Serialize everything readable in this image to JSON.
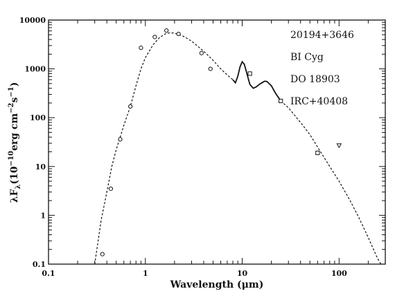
{
  "chart_data": {
    "type": "scatter",
    "title": "",
    "xlabel": "Wavelength (μm)",
    "ylabel": "λF_λ (10^-10 erg cm^-2 s^-1)",
    "x_scale": "log",
    "y_scale": "log",
    "xlim": [
      0.1,
      300
    ],
    "ylim": [
      0.1,
      10000
    ],
    "x_ticks": [
      0.1,
      1,
      10,
      100
    ],
    "x_tick_labels": [
      "0.1",
      "1",
      "10",
      "100"
    ],
    "y_ticks": [
      0.1,
      1,
      10,
      100,
      1000,
      10000
    ],
    "y_tick_labels": [
      "0.1",
      "1",
      "10",
      "100",
      "1000",
      "10000"
    ],
    "annotations": [
      "20194+3646",
      "BI Cyg",
      "DO 18903",
      "IRC+40408"
    ],
    "series": [
      {
        "marker": "circle",
        "points": [
          [
            0.36,
            0.16
          ],
          [
            0.44,
            3.5
          ],
          [
            0.55,
            36
          ],
          [
            0.7,
            170
          ],
          [
            0.9,
            2700
          ],
          [
            1.25,
            4500
          ],
          [
            1.65,
            6100
          ],
          [
            2.2,
            5200
          ],
          [
            3.8,
            2100
          ],
          [
            4.7,
            1000
          ]
        ]
      },
      {
        "marker": "square",
        "points": [
          [
            12,
            800
          ],
          [
            25,
            220
          ],
          [
            60,
            19
          ]
        ]
      },
      {
        "marker": "triangle-down",
        "points": [
          [
            100,
            27
          ]
        ]
      },
      {
        "style": "dashed",
        "points": [
          [
            0.3,
            0.1
          ],
          [
            0.35,
            0.8
          ],
          [
            0.4,
            3
          ],
          [
            0.45,
            10
          ],
          [
            0.5,
            22
          ],
          [
            0.6,
            70
          ],
          [
            0.7,
            170
          ],
          [
            0.8,
            450
          ],
          [
            0.9,
            1000
          ],
          [
            1.0,
            1700
          ],
          [
            1.2,
            3100
          ],
          [
            1.4,
            4400
          ],
          [
            1.6,
            5200
          ],
          [
            1.8,
            5500
          ],
          [
            2.0,
            5400
          ],
          [
            2.5,
            4600
          ],
          [
            3.0,
            3700
          ],
          [
            4.0,
            2300
          ],
          [
            5.0,
            1500
          ],
          [
            6.0,
            1000
          ],
          [
            7.0,
            750
          ],
          [
            8.0,
            600
          ]
        ]
      },
      {
        "style": "solid",
        "points": [
          [
            8.0,
            600
          ],
          [
            8.5,
            520
          ],
          [
            9.0,
            700
          ],
          [
            9.5,
            1100
          ],
          [
            10.0,
            1400
          ],
          [
            10.5,
            1250
          ],
          [
            11.0,
            900
          ],
          [
            11.5,
            650
          ],
          [
            12.0,
            480
          ],
          [
            13.0,
            400
          ],
          [
            14.0,
            430
          ],
          [
            15.0,
            480
          ],
          [
            16.0,
            520
          ],
          [
            17.0,
            560
          ],
          [
            18.0,
            550
          ],
          [
            20.0,
            450
          ],
          [
            22.0,
            320
          ],
          [
            25.0,
            220
          ]
        ]
      },
      {
        "style": "dashed",
        "points": [
          [
            25,
            220
          ],
          [
            30,
            160
          ],
          [
            40,
            80
          ],
          [
            50,
            45
          ],
          [
            60,
            25
          ],
          [
            80,
            10
          ],
          [
            100,
            5
          ],
          [
            130,
            2
          ],
          [
            160,
            0.9
          ],
          [
            200,
            0.35
          ],
          [
            250,
            0.13
          ],
          [
            270,
            0.1
          ]
        ]
      }
    ]
  }
}
